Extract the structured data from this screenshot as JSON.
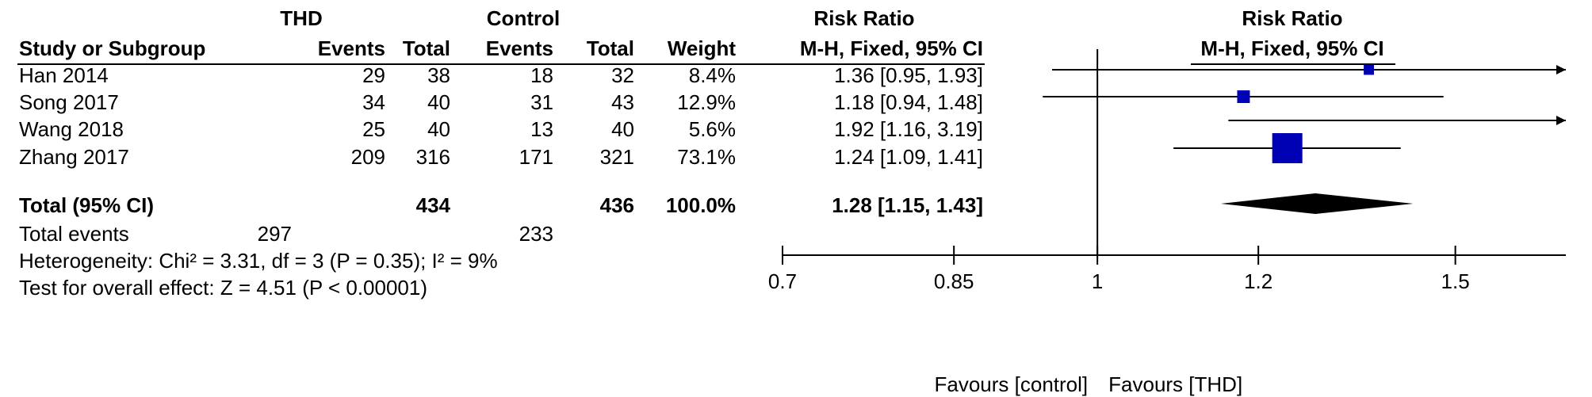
{
  "header": {
    "group1_title": "THD",
    "group2_title": "Control",
    "rr_title": "Risk Ratio",
    "col_study": "Study or Subgroup",
    "col_events1": "Events",
    "col_total1": "Total",
    "col_events2": "Events",
    "col_total2": "Total",
    "col_weight": "Weight",
    "col_method": "M-H, Fixed, 95% CI",
    "plot_title": "Risk Ratio",
    "plot_method": "M-H, Fixed, 95% CI"
  },
  "studies": [
    {
      "name": "Han 2014",
      "events1": "29",
      "total1": "38",
      "events2": "18",
      "total2": "32",
      "weight": "8.4%",
      "ci_text": "1.36 [0.95, 1.93]"
    },
    {
      "name": "Song 2017",
      "events1": "34",
      "total1": "40",
      "events2": "31",
      "total2": "43",
      "weight": "12.9%",
      "ci_text": "1.18 [0.94, 1.48]"
    },
    {
      "name": "Wang 2018",
      "events1": "25",
      "total1": "40",
      "events2": "13",
      "total2": "40",
      "weight": "5.6%",
      "ci_text": "1.92 [1.16, 3.19]"
    },
    {
      "name": "Zhang 2017",
      "events1": "209",
      "total1": "316",
      "events2": "171",
      "total2": "321",
      "weight": "73.1%",
      "ci_text": "1.24 [1.09, 1.41]"
    }
  ],
  "total": {
    "label": "Total (95% CI)",
    "total1": "434",
    "total2": "436",
    "weight": "100.0%",
    "ci_text": "1.28 [1.15, 1.43]"
  },
  "total_events": {
    "label": "Total events",
    "events1": "297",
    "events2": "233"
  },
  "heterogeneity": "Heterogeneity: Chi² = 3.31, df = 3 (P = 0.35); I² = 9%",
  "overall_effect": "Test for overall effect: Z = 4.51 (P < 0.00001)",
  "colors": {
    "marker": "#0000b4",
    "diamond": "#000000",
    "line": "#000000"
  },
  "chart_data": {
    "type": "forest",
    "scale": "log",
    "xlim": [
      0.7,
      1.7
    ],
    "xticks": [
      0.7,
      0.85,
      1,
      1.2,
      1.5
    ],
    "xtick_labels": [
      "0.7",
      "0.85",
      "1",
      "1.2",
      "1.5"
    ],
    "null_value": 1,
    "favours_left": "Favours [control]",
    "favours_right": "Favours [THD]",
    "series": [
      {
        "name": "Han 2014",
        "rr": 1.36,
        "lo": 0.95,
        "hi": 1.93,
        "weight": 8.4
      },
      {
        "name": "Song 2017",
        "rr": 1.18,
        "lo": 0.94,
        "hi": 1.48,
        "weight": 12.9
      },
      {
        "name": "Wang 2018",
        "rr": 1.92,
        "lo": 1.16,
        "hi": 3.19,
        "weight": 5.6
      },
      {
        "name": "Zhang 2017",
        "rr": 1.24,
        "lo": 1.09,
        "hi": 1.41,
        "weight": 73.1
      }
    ],
    "pooled": {
      "rr": 1.28,
      "lo": 1.15,
      "hi": 1.43
    }
  }
}
